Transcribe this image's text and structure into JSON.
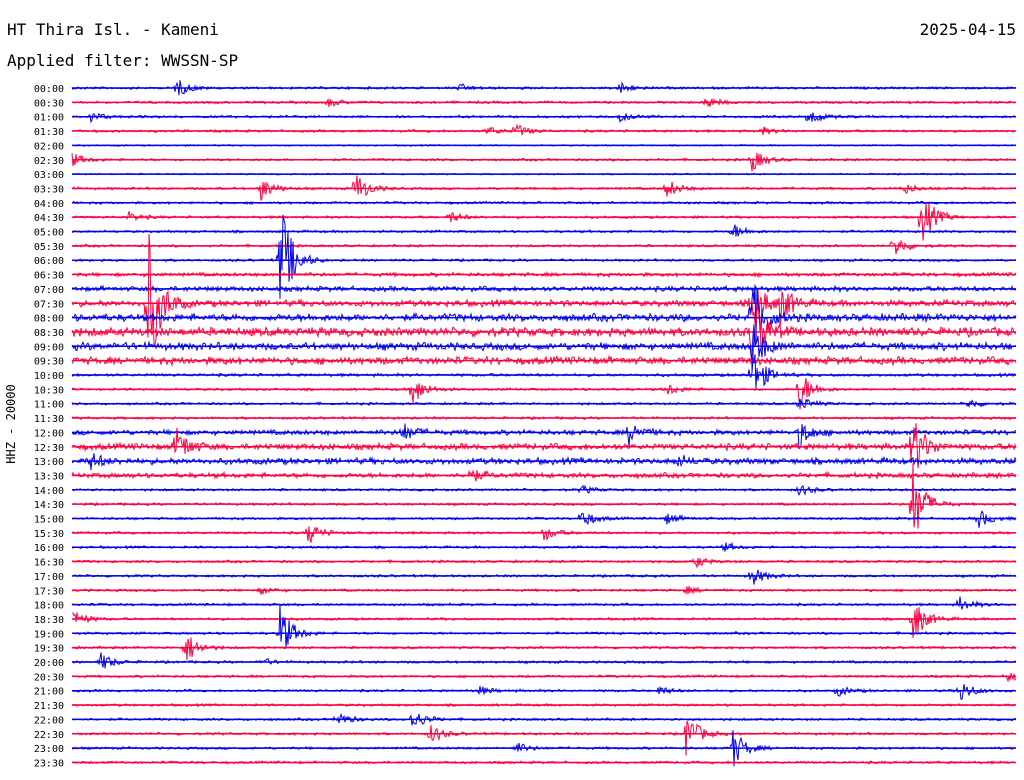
{
  "header": {
    "station": "HT Thira Isl. - Kameni",
    "date": "2025-04-15",
    "filter": "Applied filter: WWSSN-SP"
  },
  "colors": {
    "trace_even": "#0000ee",
    "trace_odd": "#ff0040",
    "text": "#000000"
  },
  "chart_data": {
    "type": "seismogram",
    "ylabel": "HHZ - 20000",
    "row_labels": [
      "00:00",
      "00:30",
      "01:00",
      "01:30",
      "02:00",
      "02:30",
      "03:00",
      "03:30",
      "04:00",
      "04:30",
      "05:00",
      "05:30",
      "06:00",
      "06:30",
      "07:00",
      "07:30",
      "08:00",
      "08:30",
      "09:00",
      "09:30",
      "10:00",
      "10:30",
      "11:00",
      "11:30",
      "12:00",
      "12:30",
      "13:00",
      "13:30",
      "14:00",
      "14:30",
      "15:00",
      "15:30",
      "16:00",
      "16:30",
      "17:00",
      "17:30",
      "18:00",
      "18:30",
      "19:00",
      "19:30",
      "20:00",
      "20:30",
      "21:00",
      "21:30",
      "22:00",
      "22:30",
      "23:00",
      "23:30"
    ],
    "row_minutes": 30,
    "noise_levels": [
      1,
      1,
      1,
      1,
      0.6,
      1,
      0.6,
      1,
      1,
      1,
      1,
      1,
      1,
      1.5,
      2,
      2.5,
      3,
      3.5,
      3,
      3,
      1.2,
      1,
      1,
      1,
      2,
      2.5,
      2.5,
      2,
      1,
      1,
      1,
      1,
      1,
      1,
      1,
      1,
      1,
      1,
      1,
      1,
      1,
      1,
      1,
      1,
      1,
      1,
      1,
      1
    ],
    "events": [
      {
        "row": 0,
        "t": 0.11,
        "a": 10
      },
      {
        "row": 0,
        "t": 0.58,
        "a": 6
      },
      {
        "row": 0,
        "t": 0.41,
        "a": 4
      },
      {
        "row": 1,
        "t": 0.27,
        "a": 5
      },
      {
        "row": 1,
        "t": 0.67,
        "a": 7
      },
      {
        "row": 2,
        "t": 0.02,
        "a": 5
      },
      {
        "row": 2,
        "t": 0.58,
        "a": 5
      },
      {
        "row": 2,
        "t": 0.78,
        "a": 10
      },
      {
        "row": 3,
        "t": 0.44,
        "a": 5
      },
      {
        "row": 3,
        "t": 0.47,
        "a": 7
      },
      {
        "row": 3,
        "t": 0.73,
        "a": 4
      },
      {
        "row": 5,
        "t": 0.0,
        "a": 7
      },
      {
        "row": 5,
        "t": 0.72,
        "a": 12
      },
      {
        "row": 7,
        "t": 0.2,
        "a": 12
      },
      {
        "row": 7,
        "t": 0.3,
        "a": 18
      },
      {
        "row": 7,
        "t": 0.63,
        "a": 10
      },
      {
        "row": 7,
        "t": 0.88,
        "a": 6
      },
      {
        "row": 9,
        "t": 0.06,
        "a": 5
      },
      {
        "row": 9,
        "t": 0.4,
        "a": 6
      },
      {
        "row": 9,
        "t": 0.9,
        "a": 30
      },
      {
        "row": 10,
        "t": 0.7,
        "a": 8
      },
      {
        "row": 11,
        "t": 0.87,
        "a": 12
      },
      {
        "row": 12,
        "t": 0.22,
        "a": 65
      },
      {
        "row": 15,
        "t": 0.08,
        "a": 80
      },
      {
        "row": 15,
        "t": 0.72,
        "a": 30
      },
      {
        "row": 15,
        "t": 0.75,
        "a": 20
      },
      {
        "row": 16,
        "t": 0.72,
        "a": 40
      },
      {
        "row": 17,
        "t": 0.72,
        "a": 45
      },
      {
        "row": 18,
        "t": 0.72,
        "a": 25
      },
      {
        "row": 20,
        "t": 0.72,
        "a": 30
      },
      {
        "row": 21,
        "t": 0.36,
        "a": 18
      },
      {
        "row": 21,
        "t": 0.63,
        "a": 6
      },
      {
        "row": 21,
        "t": 0.77,
        "a": 22
      },
      {
        "row": 22,
        "t": 0.77,
        "a": 8
      },
      {
        "row": 22,
        "t": 0.95,
        "a": 5
      },
      {
        "row": 24,
        "t": 0.35,
        "a": 10
      },
      {
        "row": 24,
        "t": 0.59,
        "a": 12
      },
      {
        "row": 24,
        "t": 0.77,
        "a": 15
      },
      {
        "row": 25,
        "t": 0.11,
        "a": 20
      },
      {
        "row": 25,
        "t": 0.89,
        "a": 35
      },
      {
        "row": 26,
        "t": 0.02,
        "a": 8
      },
      {
        "row": 26,
        "t": 0.64,
        "a": 6
      },
      {
        "row": 27,
        "t": 0.42,
        "a": 8
      },
      {
        "row": 28,
        "t": 0.77,
        "a": 6
      },
      {
        "row": 28,
        "t": 0.54,
        "a": 4
      },
      {
        "row": 29,
        "t": 0.89,
        "a": 45
      },
      {
        "row": 30,
        "t": 0.54,
        "a": 10
      },
      {
        "row": 30,
        "t": 0.63,
        "a": 6
      },
      {
        "row": 30,
        "t": 0.96,
        "a": 10
      },
      {
        "row": 31,
        "t": 0.25,
        "a": 12
      },
      {
        "row": 31,
        "t": 0.5,
        "a": 8
      },
      {
        "row": 32,
        "t": 0.69,
        "a": 5
      },
      {
        "row": 33,
        "t": 0.66,
        "a": 6
      },
      {
        "row": 34,
        "t": 0.72,
        "a": 10
      },
      {
        "row": 35,
        "t": 0.2,
        "a": 4
      },
      {
        "row": 35,
        "t": 0.65,
        "a": 4
      },
      {
        "row": 36,
        "t": 0.94,
        "a": 8
      },
      {
        "row": 37,
        "t": 0.0,
        "a": 10
      },
      {
        "row": 37,
        "t": 0.89,
        "a": 25
      },
      {
        "row": 38,
        "t": 0.22,
        "a": 30
      },
      {
        "row": 39,
        "t": 0.12,
        "a": 18
      },
      {
        "row": 40,
        "t": 0.03,
        "a": 10
      },
      {
        "row": 40,
        "t": 0.2,
        "a": 4
      },
      {
        "row": 41,
        "t": 0.99,
        "a": 6
      },
      {
        "row": 42,
        "t": 0.43,
        "a": 5
      },
      {
        "row": 42,
        "t": 0.62,
        "a": 5
      },
      {
        "row": 42,
        "t": 0.81,
        "a": 6
      },
      {
        "row": 42,
        "t": 0.94,
        "a": 12
      },
      {
        "row": 44,
        "t": 0.28,
        "a": 8
      },
      {
        "row": 44,
        "t": 0.36,
        "a": 12
      },
      {
        "row": 45,
        "t": 0.38,
        "a": 10
      },
      {
        "row": 46,
        "t": 0.47,
        "a": 6
      },
      {
        "row": 46,
        "t": 0.7,
        "a": 20
      },
      {
        "row": 45,
        "t": 0.65,
        "a": 25
      }
    ]
  }
}
